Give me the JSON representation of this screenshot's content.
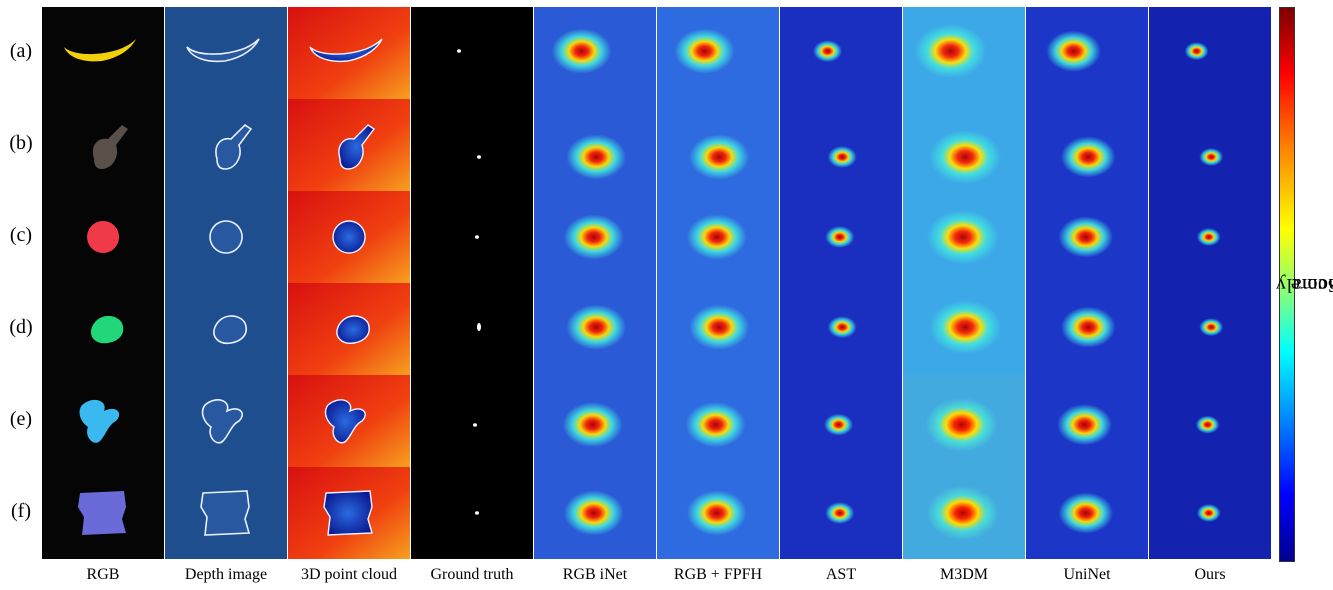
{
  "rows": [
    "(a)",
    "(b)",
    "(c)",
    "(d)",
    "(e)",
    "(f)"
  ],
  "columns": [
    "RGB",
    "Depth image",
    "3D point cloud",
    "Ground truth",
    "RGB iNet",
    "RGB + FPFH",
    "AST",
    "M3DM",
    "UniNet",
    "Ours"
  ],
  "colorbar": {
    "label_words": [
      "Anomaly",
      "Score"
    ]
  },
  "colors": {
    "cold": "#0a1aa8",
    "hot": "#b00000",
    "depth_bg": "#1f4e8e",
    "rgb_bg": "#000000"
  }
}
